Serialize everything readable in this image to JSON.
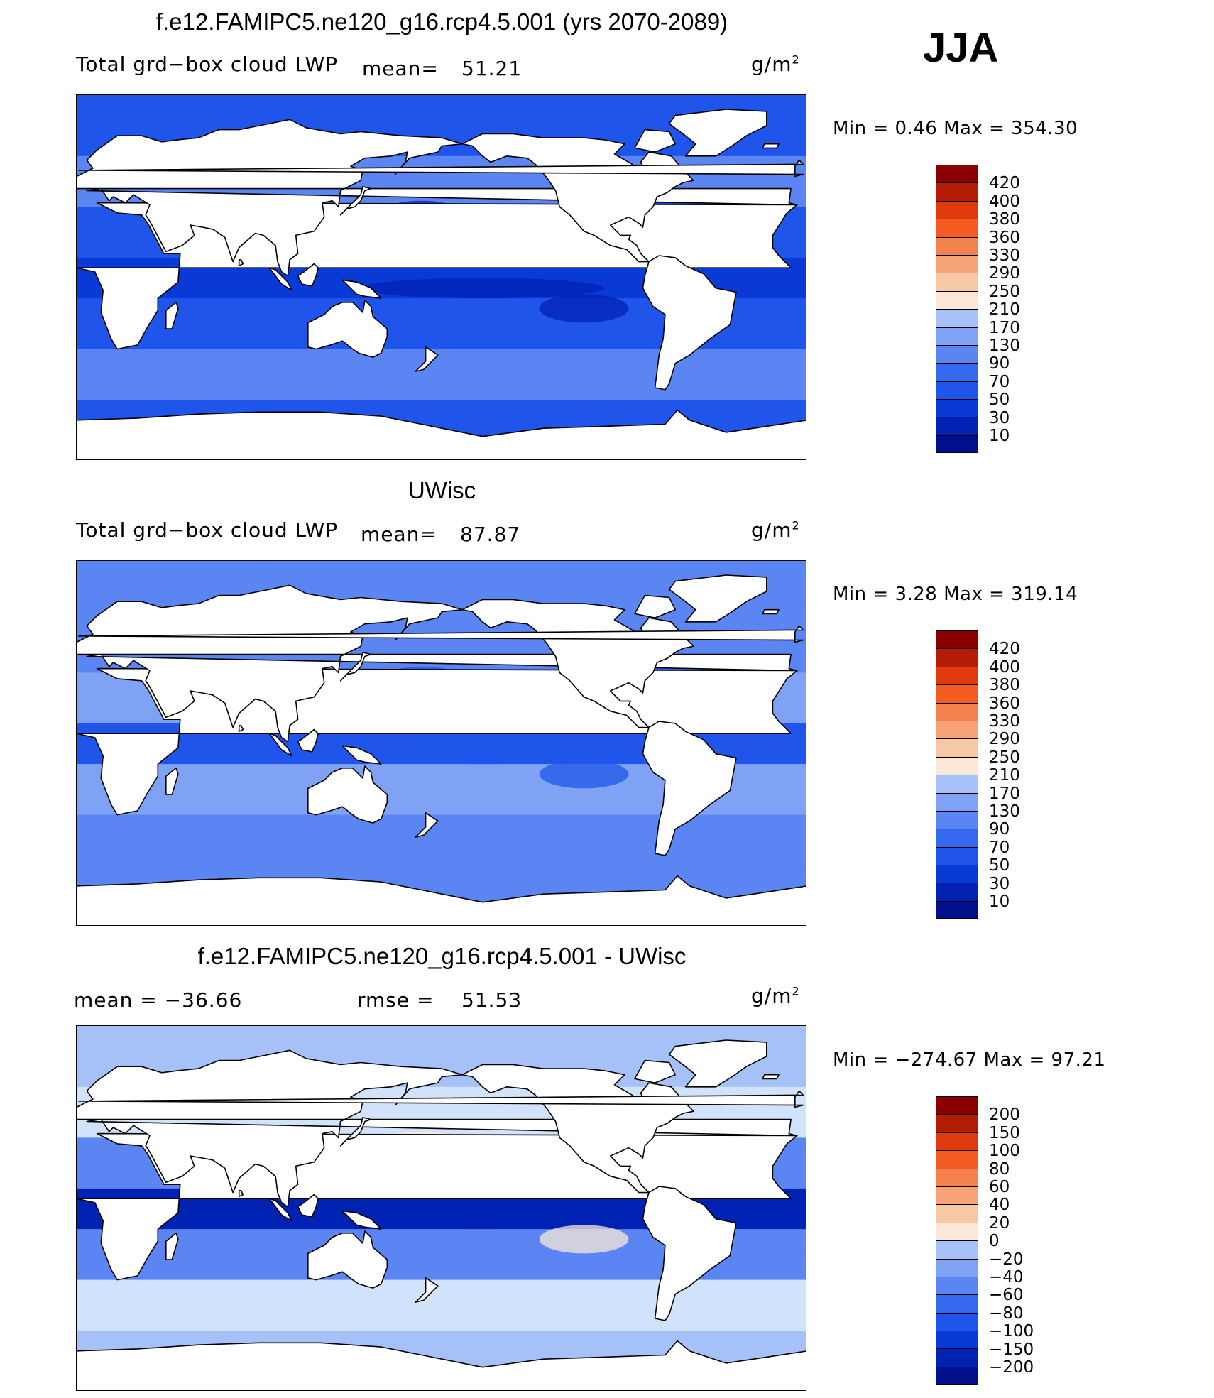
{
  "season": "JJA",
  "colors": {
    "land": "#ffffff",
    "coast": "#000000",
    "abs_scale": [
      "#00108a",
      "#0022b3",
      "#0a3ad6",
      "#1f55ea",
      "#3468ee",
      "#5a85f2",
      "#7fa2f5",
      "#a6c0f8",
      "#d1e3fb",
      "#fbe8d8",
      "#f8c8a6",
      "#f6a477",
      "#f4824e",
      "#f45c22",
      "#e03a0e",
      "#b51c05",
      "#8a0000"
    ],
    "diff_scale": [
      "#00108a",
      "#0022b3",
      "#0a3ad6",
      "#1f55ea",
      "#3468ee",
      "#5a85f2",
      "#7fa2f5",
      "#a6c0f8",
      "#d1e3fb",
      "#fbe8d8",
      "#f8c8a6",
      "#f6a477",
      "#f4824e",
      "#f45c22",
      "#e03a0e",
      "#b51c05",
      "#8a0000"
    ]
  },
  "panels": [
    {
      "title": "f.e12.FAMIPC5.ne120_g16.rcp4.5.001 (yrs 2070-2089)",
      "left_label": "Total grd−box cloud LWP",
      "mean_label": "mean=",
      "mean_value": "51.21",
      "units": "g/m",
      "units_sup": "2",
      "minmax": "Min =    0.46 Max = 354.30",
      "colorbar_labels": [
        "420",
        "400",
        "380",
        "360",
        "330",
        "290",
        "250",
        "210",
        "170",
        "130",
        "90",
        "70",
        "50",
        "30",
        "10"
      ],
      "field": {
        "base": 3,
        "tropics": 2,
        "subtropics": 3,
        "high_lat": 5
      }
    },
    {
      "title": "UWisc",
      "left_label": "Total grd−box cloud LWP",
      "mean_label": "mean=",
      "mean_value": "87.87",
      "units": "g/m",
      "units_sup": "2",
      "minmax": "Min =    3.28 Max = 319.14",
      "colorbar_labels": [
        "420",
        "400",
        "380",
        "360",
        "330",
        "290",
        "250",
        "210",
        "170",
        "130",
        "90",
        "70",
        "50",
        "30",
        "10"
      ],
      "field": {
        "base": 5,
        "tropics": 3,
        "subtropics": 6,
        "high_lat": 5
      }
    },
    {
      "title": "f.e12.FAMIPC5.ne120_g16.rcp4.5.001 - UWisc",
      "left_label": "mean = −36.66",
      "mean_label": "rmse =",
      "mean_value": "51.53",
      "units": "g/m",
      "units_sup": "2",
      "minmax": "Min = −274.67 Max =   97.21",
      "colorbar_labels": [
        "200",
        "150",
        "100",
        "80",
        "60",
        "40",
        "20",
        "0",
        "−20",
        "−40",
        "−60",
        "−80",
        "−100",
        "−150",
        "−200"
      ],
      "field": {
        "base": 7,
        "tropics": 1,
        "subtropics": 5,
        "high_lat": 8
      }
    }
  ],
  "chart_data": [
    {
      "type": "heatmap",
      "title": "f.e12.FAMIPC5.ne120_g16.rcp4.5.001 (yrs 2070-2089)",
      "variable": "Total grd-box cloud LWP",
      "units": "g/m2",
      "mean": 51.21,
      "min": 0.46,
      "max": 354.3,
      "levels": [
        10,
        30,
        50,
        70,
        90,
        130,
        170,
        210,
        250,
        290,
        330,
        360,
        380,
        400,
        420
      ]
    },
    {
      "type": "heatmap",
      "title": "UWisc",
      "variable": "Total grd-box cloud LWP",
      "units": "g/m2",
      "mean": 87.87,
      "min": 3.28,
      "max": 319.14,
      "levels": [
        10,
        30,
        50,
        70,
        90,
        130,
        170,
        210,
        250,
        290,
        330,
        360,
        380,
        400,
        420
      ]
    },
    {
      "type": "heatmap",
      "title": "f.e12.FAMIPC5.ne120_g16.rcp4.5.001 - UWisc",
      "units": "g/m2",
      "mean": -36.66,
      "rmse": 51.53,
      "min": -274.67,
      "max": 97.21,
      "levels": [
        -200,
        -150,
        -100,
        -80,
        -60,
        -40,
        -20,
        0,
        20,
        40,
        60,
        80,
        100,
        150,
        200
      ]
    }
  ]
}
